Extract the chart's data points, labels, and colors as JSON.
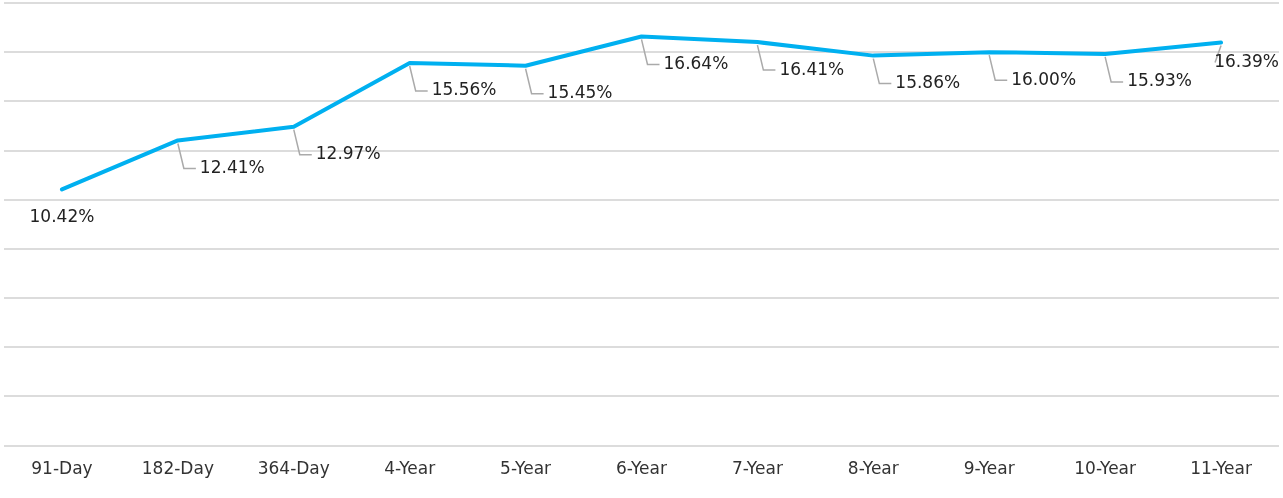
{
  "chart_data": {
    "type": "line",
    "categories": [
      "91-Day",
      "182-Day",
      "364-Day",
      "4-Year",
      "5-Year",
      "6-Year",
      "7-Year",
      "8-Year",
      "9-Year",
      "10-Year",
      "11-Year"
    ],
    "values": [
      10.42,
      12.41,
      12.97,
      15.56,
      15.45,
      16.64,
      16.41,
      15.86,
      16.0,
      15.93,
      16.39
    ],
    "color": "#00b0f0",
    "value_labels": [
      "10.42%",
      "12.41%",
      "12.97%",
      "15.56%",
      "15.45%",
      "16.64%",
      "16.41%",
      "15.86%",
      "16.00%",
      "15.93%",
      "16.39%"
    ],
    "tick_labels": "x",
    "grid": "y",
    "legend": false,
    "marker": "none",
    "line_style": "solid"
  }
}
